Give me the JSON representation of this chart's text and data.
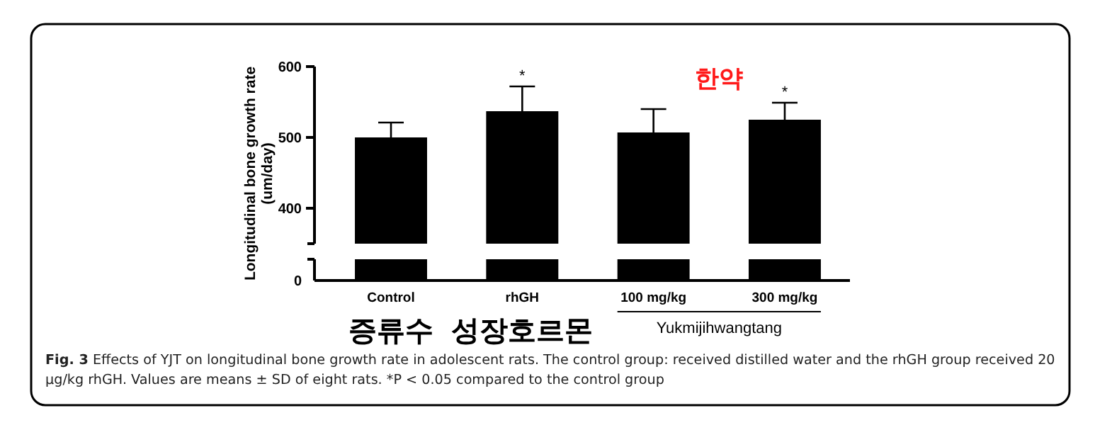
{
  "chart_data": {
    "type": "bar",
    "title": "Fig. 3",
    "ylabel": "Longitudinal bone growth rate\n(um/day)",
    "categories": [
      "Control",
      "rhGH",
      "100 mg/kg",
      "300 mg/kg"
    ],
    "values": [
      500,
      537,
      507,
      525
    ],
    "errors": [
      21,
      35,
      33,
      24
    ],
    "color": "#000000",
    "ylim": [
      350,
      600
    ],
    "yticks": [
      400,
      500,
      600
    ],
    "grid": false,
    "annotations": [
      {
        "text": "*",
        "x": "rhGH",
        "y": 572
      },
      {
        "text": "*",
        "x": "300 mg/kg",
        "y": 549
      },
      "0",
      "증류수",
      "성장호르몬",
      "한약",
      "Yukmijihwangtang",
      "Effects of YJT on longitudinal bone growth rate in adolescent rats. The control group: received distilled water and the rhGH group received 20 μg/kg rhGH. Values are means ± SD of eight rats. *P < 0.05 compared to the control group"
    ]
  }
}
